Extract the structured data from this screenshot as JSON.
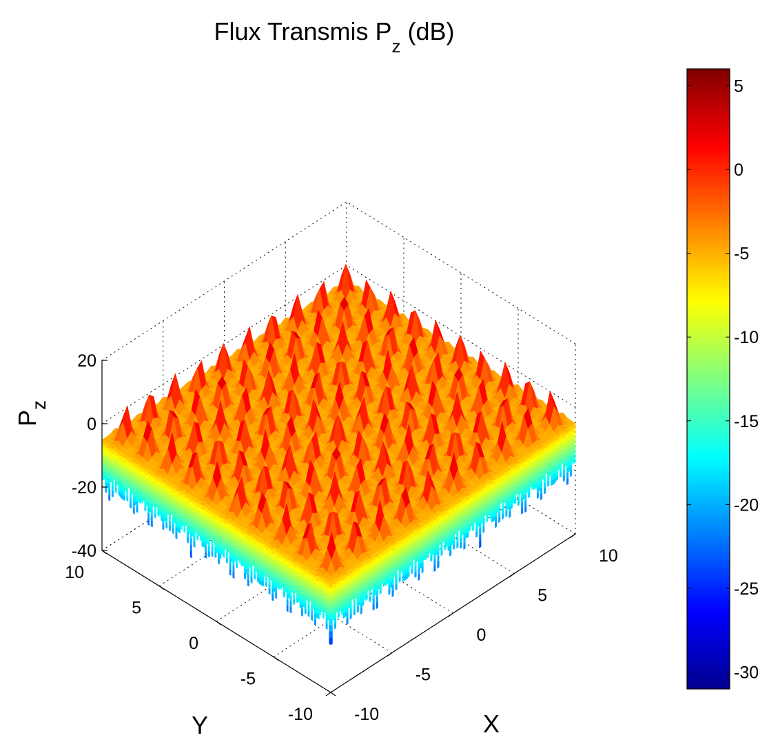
{
  "chart_data": {
    "type": "surface",
    "title": "Flux Transmis P",
    "title_subscript": "z",
    "title_suffix": "(dB)",
    "xlabel": "X",
    "ylabel": "Y",
    "zlabel": "P",
    "zlabel_subscript": "z",
    "xlim": [
      -10,
      10
    ],
    "ylim": [
      -10,
      10
    ],
    "zlim": [
      -40,
      20
    ],
    "xticks": [
      -10,
      -5,
      0,
      5,
      10
    ],
    "yticks": [
      -10,
      -5,
      0,
      5,
      10
    ],
    "zticks": [
      -40,
      -20,
      0,
      20
    ],
    "grid": true,
    "colormap": "jet",
    "colorbar": {
      "position": "right",
      "range": [
        -31,
        6
      ],
      "ticks": [
        5,
        0,
        -5,
        -10,
        -15,
        -20,
        -25,
        -30
      ]
    },
    "surface": {
      "description_free": true,
      "peak_count_per_side": 10,
      "peak_value_db": 6,
      "plateau_value_db": -3,
      "trough_value_db": -25
    },
    "colors": {
      "jet": [
        "#00008f",
        "#0000ff",
        "#00ffff",
        "#ffff00",
        "#ff0000",
        "#800000"
      ]
    }
  }
}
